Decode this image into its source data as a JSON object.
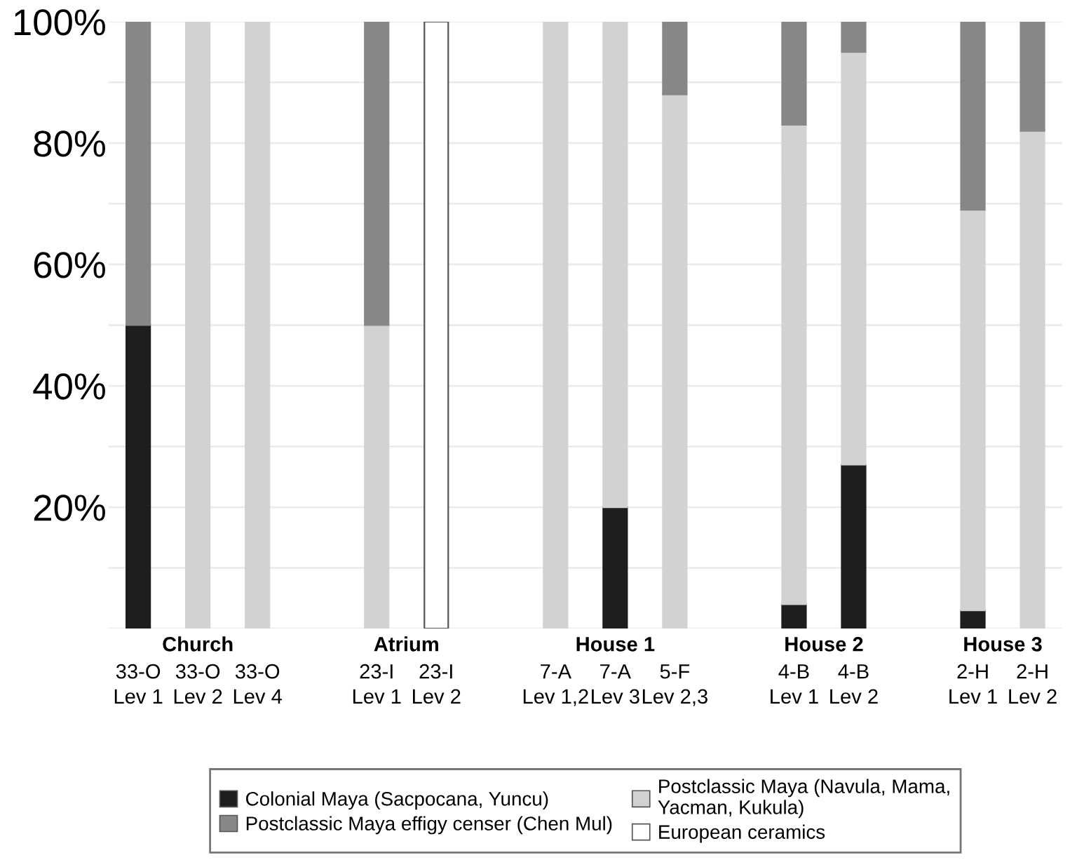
{
  "chart_data": {
    "type": "bar",
    "stacked": true,
    "categories": [
      "33-O\nLev 1",
      "33-O\nLev 2",
      "33-O\nLev 4",
      null,
      "23-I\nLev 1",
      "23-I\nLev 2",
      null,
      "7-A\nLev 1,2",
      "7-A\nLev 3",
      "5-F\nLev 2,3",
      null,
      "4-B\nLev 1",
      "4-B\nLev 2",
      null,
      "2-H\nLev 1",
      "2-H\nLev 2"
    ],
    "series": [
      {
        "name": "Colonial Maya (Sacpocana, Yuncu)",
        "color": "#1e1e1e",
        "values": [
          50,
          0,
          0,
          null,
          0,
          0,
          null,
          0,
          20,
          0,
          null,
          4,
          27,
          null,
          3,
          0
        ]
      },
      {
        "name": "Postclassic Maya (Navula, Mama,\nYacman, Kukula)",
        "color": "#d2d2d2",
        "values": [
          0,
          100,
          100,
          null,
          50,
          0,
          null,
          100,
          80,
          88,
          null,
          79,
          68,
          null,
          66,
          82
        ]
      },
      {
        "name": "Postclassic Maya effigy censer (Chen Mul)",
        "color": "#878787",
        "values": [
          50,
          0,
          0,
          null,
          50,
          0,
          null,
          0,
          0,
          12,
          null,
          17,
          5,
          null,
          31,
          18
        ]
      },
      {
        "name": "European ceramics",
        "color": "#ffffff",
        "values": [
          0,
          0,
          0,
          null,
          0,
          100,
          null,
          0,
          0,
          0,
          null,
          0,
          0,
          null,
          0,
          0
        ]
      }
    ],
    "annotations": [
      "Church",
      "Atrium",
      "House 1",
      "House 2",
      "House 3"
    ],
    "ylim": [
      0,
      100
    ],
    "yticks": [
      {
        "value": 0,
        "label": null
      },
      {
        "value": 10,
        "label": null
      },
      {
        "value": 20,
        "label": "20%"
      },
      {
        "value": 30,
        "label": null
      },
      {
        "value": 40,
        "label": "40%"
      },
      {
        "value": 50,
        "label": null
      },
      {
        "value": 60,
        "label": "60%"
      },
      {
        "value": 70,
        "label": null
      },
      {
        "value": 80,
        "label": "80%"
      },
      {
        "value": 90,
        "label": null
      },
      {
        "value": 100,
        "label": "100%"
      }
    ],
    "grid": "y",
    "legend": "bottom"
  }
}
